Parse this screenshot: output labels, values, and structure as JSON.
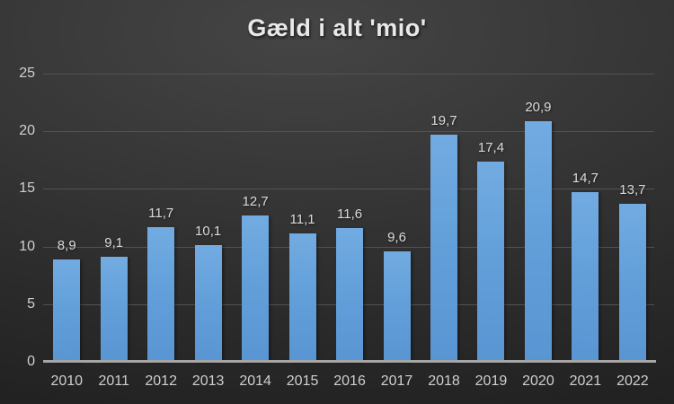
{
  "colors": {
    "background_center": "#454545",
    "background_edge": "#212121",
    "bar_top": "#72abe1",
    "bar_bottom": "#5995d2",
    "gridline": "#525252",
    "axis_line": "#a6a6a6",
    "title_text": "#e9e9e9",
    "label_text": "#d0d0d0"
  },
  "chart_data": {
    "type": "bar",
    "title": "Gæld i alt 'mio'",
    "xlabel": "",
    "ylabel": "",
    "categories": [
      "2010",
      "2011",
      "2012",
      "2013",
      "2014",
      "2015",
      "2016",
      "2017",
      "2018",
      "2019",
      "2020",
      "2021",
      "2022"
    ],
    "values": [
      8.9,
      9.1,
      11.7,
      10.1,
      12.7,
      11.1,
      11.6,
      9.6,
      19.7,
      17.4,
      20.9,
      14.7,
      13.7
    ],
    "value_labels": [
      "8,9",
      "9,1",
      "11,7",
      "10,1",
      "12,7",
      "11,1",
      "11,6",
      "9,6",
      "19,7",
      "17,4",
      "20,9",
      "14,7",
      "13,7"
    ],
    "ylim": [
      0,
      25
    ],
    "yticks": [
      0,
      5,
      10,
      15,
      20,
      25
    ],
    "grid": true,
    "legend": "none",
    "decimal_separator": ","
  }
}
